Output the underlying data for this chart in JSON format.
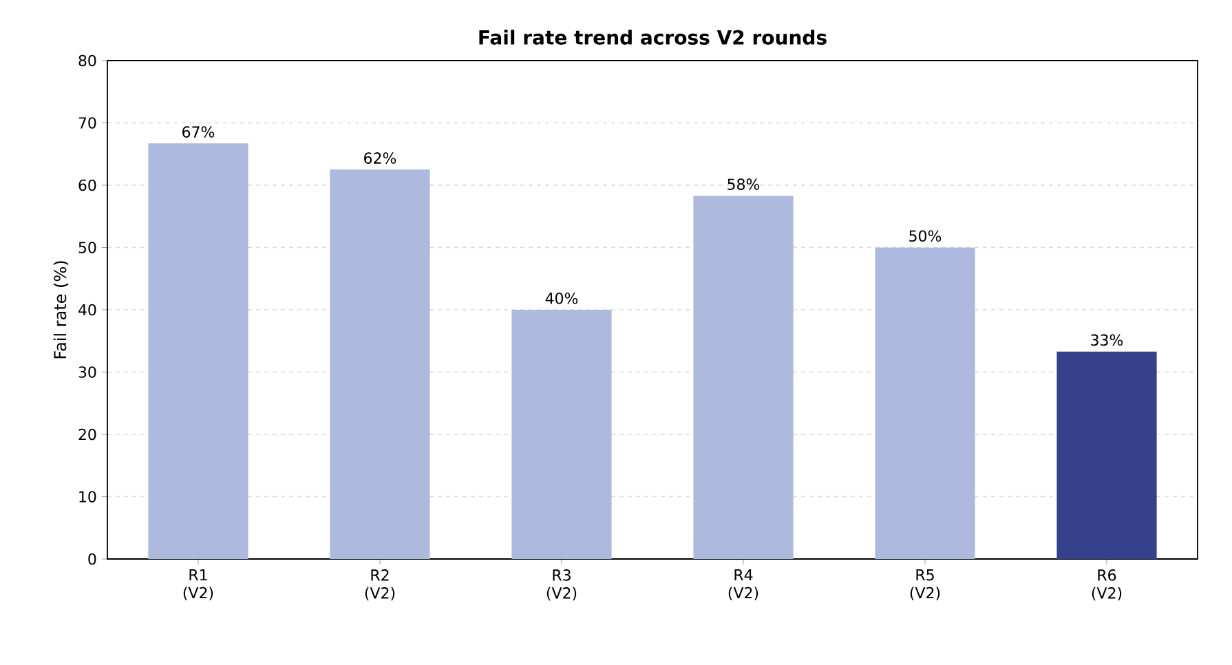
{
  "chart_data": {
    "type": "bar",
    "title": "Fail rate trend across V2 rounds",
    "ylabel": "Fail rate (%)",
    "categories": [
      "R1 (V2)",
      "R2 (V2)",
      "R3 (V2)",
      "R4 (V2)",
      "R5 (V2)",
      "R6 (V2)"
    ],
    "values": [
      66.7,
      62.5,
      40,
      58.3,
      50,
      33.3
    ],
    "value_labels": [
      "67%",
      "62%",
      "40%",
      "58%",
      "50%",
      "33%"
    ],
    "colors": [
      "#aebadd",
      "#aebadd",
      "#aebadd",
      "#aebadd",
      "#aebadd",
      "#35418a"
    ],
    "ylim": [
      0,
      80
    ],
    "yticks": [
      0,
      10,
      20,
      30,
      40,
      50,
      60,
      70,
      80
    ],
    "grid": "y",
    "line_style": "dashed"
  }
}
